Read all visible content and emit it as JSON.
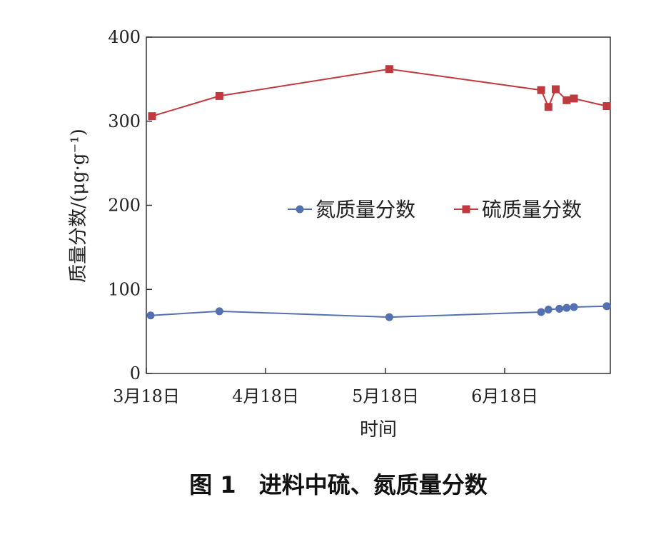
{
  "chart_data": {
    "type": "line",
    "caption": "图 1　进料中硫、氮质量分数",
    "xlabel": "时间",
    "ylabel": "质量分数/(μg·g⁻¹)",
    "ylim": [
      0,
      400
    ],
    "yticks": [
      0,
      100,
      200,
      300,
      400
    ],
    "xticks": [
      "3月18日",
      "4月18日",
      "5月18日",
      "6月18日"
    ],
    "xlim": [
      "03-18",
      "07-16"
    ],
    "grid": false,
    "legend_position": "center-right",
    "series": [
      {
        "name": "氮质量分数",
        "color": "#5470b0",
        "marker": "circle",
        "points": [
          {
            "x": "03-18",
            "y": 69
          },
          {
            "x": "04-06",
            "y": 74
          },
          {
            "x": "05-19",
            "y": 67
          },
          {
            "x": "06-28",
            "y": 73
          },
          {
            "x": "06-30",
            "y": 76
          },
          {
            "x": "07-03",
            "y": 77
          },
          {
            "x": "07-05",
            "y": 78
          },
          {
            "x": "07-07",
            "y": 79
          },
          {
            "x": "07-16",
            "y": 80
          }
        ]
      },
      {
        "name": "硫质量分数",
        "color": "#c0393f",
        "marker": "square",
        "points": [
          {
            "x": "03-18",
            "y": 306
          },
          {
            "x": "04-06",
            "y": 330
          },
          {
            "x": "05-19",
            "y": 362
          },
          {
            "x": "06-28",
            "y": 337
          },
          {
            "x": "06-30",
            "y": 317
          },
          {
            "x": "07-02",
            "y": 338
          },
          {
            "x": "07-05",
            "y": 325
          },
          {
            "x": "07-07",
            "y": 327
          },
          {
            "x": "07-16",
            "y": 318
          }
        ]
      }
    ]
  }
}
